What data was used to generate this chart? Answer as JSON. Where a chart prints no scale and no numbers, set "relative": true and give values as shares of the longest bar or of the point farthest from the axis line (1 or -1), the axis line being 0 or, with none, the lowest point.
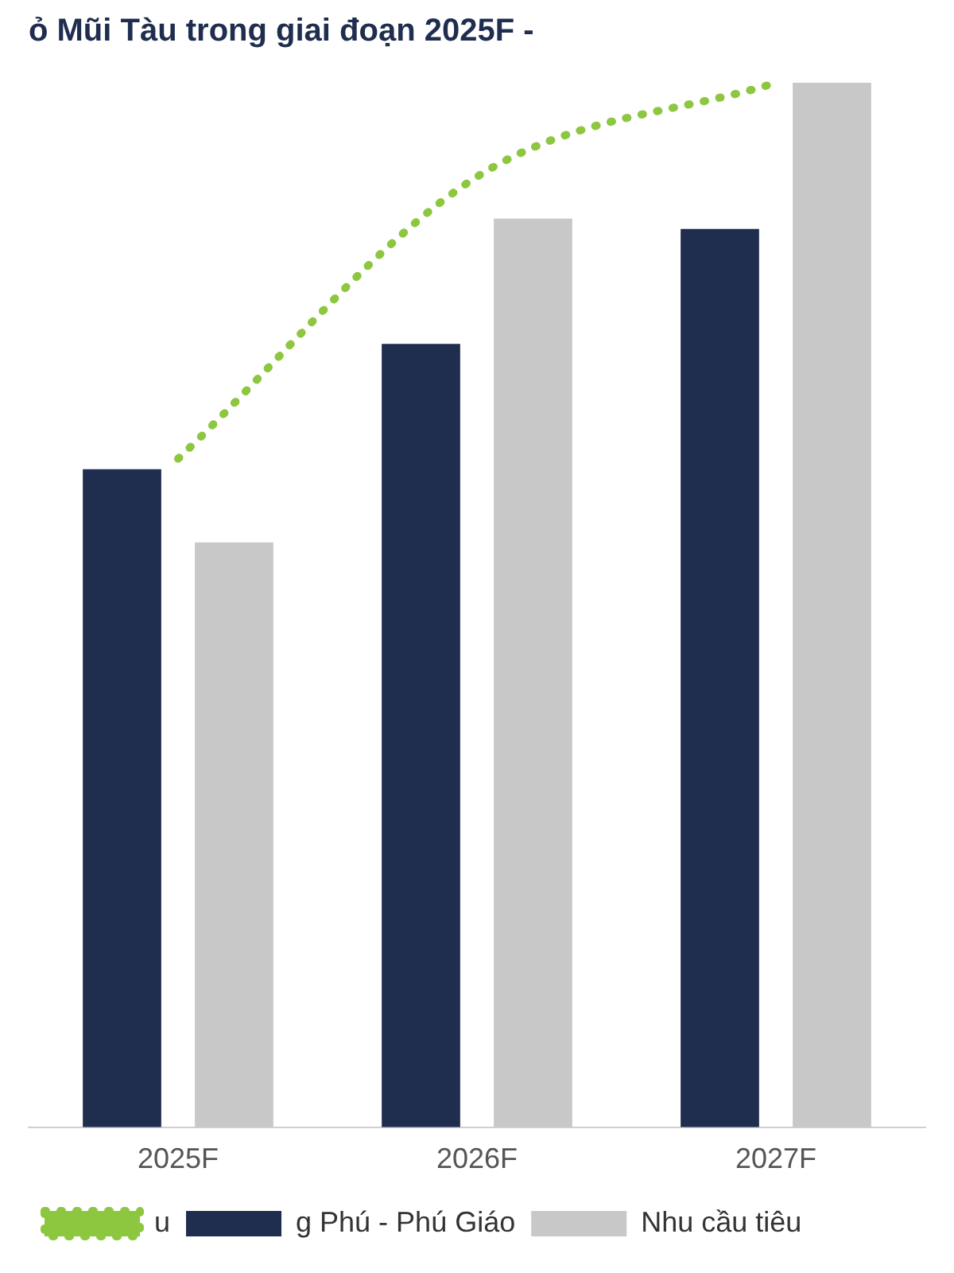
{
  "chart_data": {
    "type": "bar",
    "title": "ỏ Mũi Tàu trong giai đoạn 2025F -",
    "relative": true,
    "categories": [
      "2025F",
      "2026F",
      "2027F"
    ],
    "series": [
      {
        "name": "g Phú - Phú Giáo",
        "color": "#1f2d4e",
        "values": [
          0.63,
          0.75,
          0.86
        ]
      },
      {
        "name": "Nhu cầu tiêu",
        "color": "#c8c8c8",
        "values": [
          0.56,
          0.87,
          1
        ]
      },
      {
        "name": "u",
        "type": "line",
        "color": "#8dc63f",
        "line_style": "dotted",
        "marker": "none",
        "values": [
          0.64,
          0.91,
          1
        ]
      }
    ],
    "grid": false,
    "legend": "bottom"
  }
}
